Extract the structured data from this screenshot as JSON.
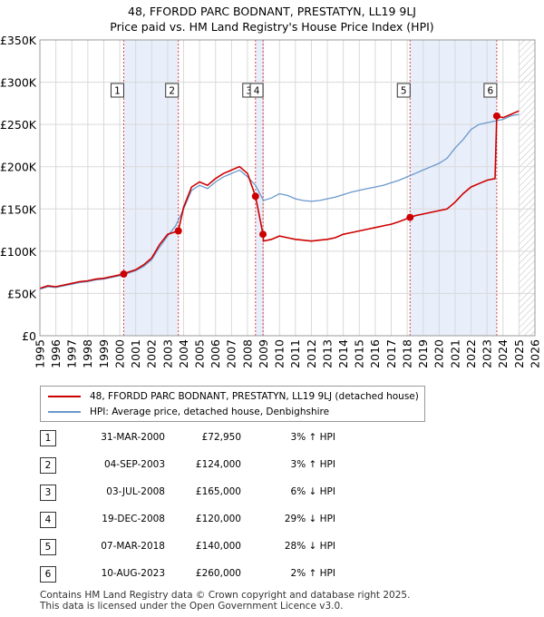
{
  "title_line1": "48, FFORDD PARC BODNANT, PRESTATYN, LL19 9LJ",
  "title_line2": "Price paid vs. HM Land Registry's House Price Index (HPI)",
  "colors": {
    "property": "#cc0000",
    "hpi": "#6a98cc",
    "band": "#e8eefa",
    "grid": "#d9d9d9",
    "marker_line": "#dd4444"
  },
  "legend": {
    "property_label": "48, FFORDD PARC BODNANT, PRESTATYN, LL19 9LJ (detached house)",
    "hpi_label": "HPI: Average price, detached house, Denbighshire"
  },
  "sales": [
    {
      "num": "1",
      "date": "31-MAR-2000",
      "price": "£72,950",
      "hpi": "3% ↑ HPI"
    },
    {
      "num": "2",
      "date": "04-SEP-2003",
      "price": "£124,000",
      "hpi": "3% ↑ HPI"
    },
    {
      "num": "3",
      "date": "03-JUL-2008",
      "price": "£165,000",
      "hpi": "6% ↓ HPI"
    },
    {
      "num": "4",
      "date": "19-DEC-2008",
      "price": "£120,000",
      "hpi": "29% ↓ HPI"
    },
    {
      "num": "5",
      "date": "07-MAR-2018",
      "price": "£140,000",
      "hpi": "28% ↓ HPI"
    },
    {
      "num": "6",
      "date": "10-AUG-2023",
      "price": "£260,000",
      "hpi": "2% ↑ HPI"
    }
  ],
  "footer_line1": "Contains HM Land Registry data © Crown copyright and database right 2025.",
  "footer_line2": "This data is licensed under the Open Government Licence v3.0.",
  "chart_data": {
    "type": "line",
    "title": "48, FFORDD PARC BODNANT, PRESTATYN, LL19 9LJ — Price paid vs. HM Land Registry's House Price Index (HPI)",
    "xlabel": "",
    "ylabel": "",
    "xlim": [
      1995,
      2026
    ],
    "ylim": [
      0,
      350000
    ],
    "x_ticks": [
      "1995",
      "1996",
      "1997",
      "1998",
      "1999",
      "2000",
      "2001",
      "2002",
      "2003",
      "2004",
      "2005",
      "2006",
      "2007",
      "2008",
      "2009",
      "2010",
      "2011",
      "2012",
      "2013",
      "2014",
      "2015",
      "2016",
      "2017",
      "2018",
      "2019",
      "2020",
      "2021",
      "2022",
      "2023",
      "2024",
      "2025",
      "2026"
    ],
    "y_ticks": [
      {
        "value": 0,
        "label": "£0"
      },
      {
        "value": 50000,
        "label": "£50K"
      },
      {
        "value": 100000,
        "label": "£100K"
      },
      {
        "value": 150000,
        "label": "£150K"
      },
      {
        "value": 200000,
        "label": "£200K"
      },
      {
        "value": 250000,
        "label": "£250K"
      },
      {
        "value": 300000,
        "label": "£300K"
      },
      {
        "value": 350000,
        "label": "£350K"
      }
    ],
    "shaded_bands": [
      [
        2000.25,
        2003.67
      ],
      [
        2008.5,
        2008.97
      ],
      [
        2018.18,
        2023.61
      ]
    ],
    "hatched_from": 2025.0,
    "sale_markers": [
      {
        "label": "1",
        "x": 2000.25,
        "y": 72950
      },
      {
        "label": "2",
        "x": 2003.67,
        "y": 124000
      },
      {
        "label": "3",
        "x": 2008.5,
        "y": 165000
      },
      {
        "label": "4",
        "x": 2008.97,
        "y": 120000
      },
      {
        "label": "5",
        "x": 2018.18,
        "y": 140000
      },
      {
        "label": "6",
        "x": 2023.61,
        "y": 260000
      }
    ],
    "series": [
      {
        "name": "HPI: Average price, detached house, Denbighshire",
        "x": [
          1995,
          1995.5,
          1996,
          1996.5,
          1997,
          1997.5,
          1998,
          1998.5,
          1999,
          1999.5,
          2000,
          2000.5,
          2001,
          2001.5,
          2002,
          2002.5,
          2003,
          2003.5,
          2004,
          2004.5,
          2005,
          2005.5,
          2006,
          2006.5,
          2007,
          2007.5,
          2008,
          2008.5,
          2009,
          2009.5,
          2010,
          2010.5,
          2011,
          2011.5,
          2012,
          2012.5,
          2013,
          2013.5,
          2014,
          2014.5,
          2015,
          2015.5,
          2016,
          2016.5,
          2017,
          2017.5,
          2018,
          2018.5,
          2019,
          2019.5,
          2020,
          2020.5,
          2021,
          2021.5,
          2022,
          2022.5,
          2023,
          2023.5,
          2024,
          2024.5,
          2025
        ],
        "values": [
          55000,
          58000,
          57000,
          59000,
          61000,
          63000,
          64000,
          66000,
          67000,
          69000,
          71000,
          74000,
          77000,
          82000,
          90000,
          105000,
          118000,
          130000,
          150000,
          172000,
          178000,
          174000,
          182000,
          188000,
          192000,
          196000,
          188000,
          178000,
          160000,
          163000,
          168000,
          166000,
          162000,
          160000,
          159000,
          160000,
          162000,
          164000,
          167000,
          170000,
          172000,
          174000,
          176000,
          178000,
          181000,
          184000,
          188000,
          192000,
          196000,
          200000,
          204000,
          210000,
          222000,
          232000,
          244000,
          250000,
          252000,
          254000,
          256000,
          260000,
          262000
        ]
      },
      {
        "name": "48, FFORDD PARC BODNANT, PRESTATYN, LL19 9LJ (detached house)",
        "x": [
          1995,
          1995.5,
          1996,
          1996.5,
          1997,
          1997.5,
          1998,
          1998.5,
          1999,
          1999.5,
          2000,
          2000.25,
          2000.5,
          2001,
          2001.5,
          2002,
          2002.5,
          2003,
          2003.67,
          2004,
          2004.5,
          2005,
          2005.5,
          2006,
          2006.5,
          2007,
          2007.5,
          2008,
          2008.5,
          2008.97,
          2009,
          2009.5,
          2010,
          2010.5,
          2011,
          2011.5,
          2012,
          2012.5,
          2013,
          2013.5,
          2014,
          2014.5,
          2015,
          2015.5,
          2016,
          2016.5,
          2017,
          2017.5,
          2018.18,
          2018.5,
          2019,
          2019.5,
          2020,
          2020.5,
          2021,
          2021.5,
          2022,
          2022.5,
          2023,
          2023.5,
          2023.61,
          2024,
          2024.5,
          2025
        ],
        "values": [
          56000,
          59000,
          58000,
          60000,
          62000,
          64000,
          65000,
          67000,
          68000,
          70000,
          72000,
          72950,
          75000,
          78000,
          84000,
          92000,
          108000,
          120000,
          124000,
          152000,
          176000,
          182000,
          178000,
          186000,
          192000,
          196000,
          200000,
          192000,
          165000,
          120000,
          112000,
          114000,
          118000,
          116000,
          114000,
          113000,
          112000,
          113000,
          114000,
          116000,
          120000,
          122000,
          124000,
          126000,
          128000,
          130000,
          132000,
          135000,
          140000,
          142000,
          144000,
          146000,
          148000,
          150000,
          158000,
          168000,
          176000,
          180000,
          184000,
          186000,
          260000,
          258000,
          262000,
          266000
        ]
      }
    ]
  }
}
